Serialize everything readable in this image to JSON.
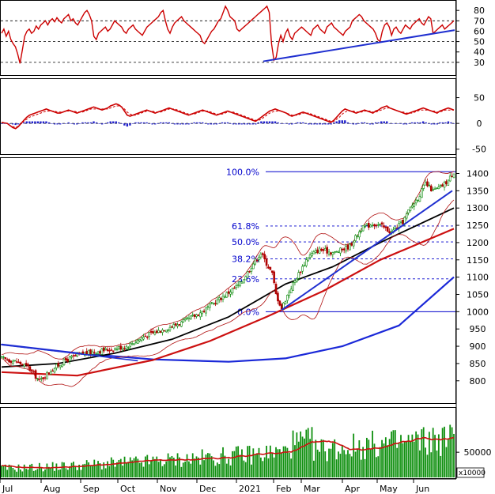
{
  "colors": {
    "rsi": "#cc0000",
    "trend": "#1f2fd0",
    "fib": "#0000cc",
    "bb": "#b01010",
    "ma50": "#000000",
    "ma100": "#cc1010",
    "ma200": "#1a28d8",
    "up": "#0a8a0a",
    "down": "#b00000",
    "volume": "#109010",
    "volume_ma": "#cc1010",
    "macd_hist": "#2020cc",
    "grid": "#000000"
  },
  "chart_data": [
    {
      "type": "line",
      "panel": "rsi",
      "ylim": [
        20,
        87
      ],
      "y_ticks": [
        80,
        70,
        60,
        50,
        40,
        30
      ],
      "ref_levels": [
        70,
        50,
        30
      ],
      "series": [
        {
          "values": [
            58,
            62,
            55,
            60,
            52,
            48,
            45,
            38,
            29,
            42,
            55,
            60,
            62,
            58,
            60,
            65,
            62,
            66,
            68,
            70,
            66,
            70,
            72,
            69,
            73,
            70,
            68,
            72,
            74,
            76,
            70,
            72,
            68,
            66,
            70,
            74,
            78,
            80,
            76,
            70,
            55,
            52,
            58,
            60,
            62,
            64,
            60,
            62,
            66,
            70,
            68,
            66,
            64,
            60,
            58,
            62,
            64,
            66,
            62,
            60,
            58,
            56,
            60,
            64,
            66,
            68,
            70,
            72,
            74,
            78,
            80,
            70,
            62,
            58,
            64,
            68,
            70,
            72,
            74,
            70,
            68,
            66,
            64,
            62,
            60,
            58,
            56,
            50,
            48,
            52,
            56,
            60,
            62,
            66,
            70,
            72,
            78,
            84,
            80,
            74,
            72,
            70,
            62,
            60,
            62,
            64,
            66,
            68,
            70,
            72,
            74,
            76,
            78,
            80,
            82,
            84,
            78,
            48,
            32,
            35,
            48,
            56,
            50,
            58,
            62,
            55,
            52,
            58,
            60,
            62,
            64,
            62,
            60,
            58,
            56,
            62,
            64,
            66,
            62,
            60,
            58,
            64,
            66,
            68,
            64,
            62,
            60,
            58,
            56,
            60,
            62,
            64,
            70,
            72,
            74,
            76,
            74,
            70,
            68,
            66,
            64,
            62,
            58,
            52,
            50,
            60,
            66,
            68,
            64,
            56,
            62,
            64,
            60,
            58,
            62,
            66,
            64,
            62,
            66,
            68,
            70,
            72,
            68,
            66,
            70,
            74,
            72,
            58,
            60,
            62,
            64,
            66,
            62,
            64,
            66,
            68,
            70
          ]
        }
      ]
    },
    {
      "type": "line",
      "panel": "macd",
      "ylim": [
        -55,
        80
      ],
      "y_ticks": [
        50,
        0,
        -50
      ],
      "series": [
        {
          "values": [
            2,
            1,
            0,
            -4,
            -8,
            -10,
            -6,
            0,
            6,
            12,
            16,
            18,
            20,
            22,
            24,
            26,
            28,
            26,
            24,
            22,
            20,
            20,
            22,
            24,
            26,
            24,
            22,
            20,
            22,
            24,
            26,
            28,
            30,
            32,
            30,
            28,
            26,
            28,
            30,
            34,
            36,
            38,
            36,
            32,
            24,
            16,
            14,
            16,
            18,
            20,
            22,
            24,
            26,
            24,
            22,
            20,
            22,
            24,
            26,
            28,
            30,
            28,
            26,
            24,
            22,
            20,
            18,
            16,
            18,
            20,
            22,
            24,
            26,
            24,
            22,
            20,
            18,
            16,
            18,
            20,
            22,
            24,
            22,
            20,
            18,
            16,
            14,
            12,
            10,
            8,
            6,
            4,
            8,
            12,
            16,
            20,
            24,
            26,
            28,
            26,
            24,
            22,
            20,
            16,
            14,
            16,
            18,
            20,
            22,
            20,
            18,
            16,
            14,
            12,
            10,
            8,
            6,
            4,
            2,
            6,
            12,
            18,
            24,
            28,
            26,
            24,
            22,
            20,
            22,
            24,
            26,
            24,
            22,
            20,
            24,
            26,
            30,
            32,
            34,
            30,
            28,
            26,
            24,
            22,
            20,
            18,
            20,
            22,
            24,
            26,
            28,
            30,
            28,
            26,
            24,
            22,
            20,
            24,
            26,
            28,
            30,
            28,
            26
          ]
        },
        {
          "values": [
            2,
            1,
            0,
            -4,
            -6,
            -8,
            -5,
            0,
            4,
            8,
            12,
            14,
            16,
            18,
            20,
            22,
            24,
            24,
            24,
            24,
            22,
            22,
            22,
            24,
            24,
            24,
            24,
            22,
            22,
            22,
            24,
            26,
            28,
            28,
            28,
            28,
            28,
            28,
            28,
            30,
            32,
            34,
            34,
            32,
            28,
            22,
            18,
            16,
            16,
            18,
            20,
            22,
            24,
            24,
            24,
            22,
            22,
            22,
            24,
            26,
            28,
            28,
            28,
            26,
            24,
            22,
            20,
            18,
            18,
            18,
            20,
            22,
            24,
            24,
            24,
            22,
            20,
            18,
            18,
            18,
            20,
            22,
            22,
            22,
            20,
            18,
            16,
            14,
            12,
            10,
            8,
            6,
            6,
            8,
            12,
            16,
            20,
            22,
            24,
            24,
            24,
            22,
            20,
            18,
            16,
            16,
            16,
            18,
            20,
            20,
            20,
            18,
            16,
            14,
            12,
            10,
            8,
            6,
            4,
            4,
            8,
            12,
            18,
            22,
            24,
            24,
            24,
            22,
            22,
            22,
            24,
            24,
            24,
            22,
            22,
            24,
            26,
            28,
            30,
            30,
            28,
            26,
            24,
            22,
            22,
            20,
            20,
            20,
            22,
            24,
            26,
            26,
            26,
            26,
            24,
            24,
            22,
            22,
            24,
            26,
            26,
            26,
            26
          ]
        }
      ],
      "histogram": [
        0,
        0,
        0,
        -1,
        -2,
        -3,
        -2,
        0,
        2,
        4,
        4,
        4,
        4,
        4,
        4,
        4,
        4,
        2,
        0,
        -2,
        -2,
        -2,
        0,
        0,
        2,
        0,
        -2,
        -2,
        0,
        2,
        2,
        2,
        2,
        4,
        2,
        0,
        -2,
        0,
        2,
        4,
        4,
        4,
        2,
        0,
        -4,
        -6,
        -4,
        0,
        2,
        2,
        2,
        2,
        2,
        0,
        -2,
        -2,
        0,
        2,
        2,
        2,
        2,
        0,
        -2,
        -2,
        -2,
        -2,
        -2,
        -2,
        0,
        2,
        2,
        2,
        2,
        0,
        -2,
        -2,
        -2,
        -2,
        0,
        2,
        2,
        2,
        0,
        -2,
        -2,
        -2,
        -2,
        -2,
        -2,
        -2,
        -2,
        -2,
        2,
        4,
        4,
        4,
        4,
        4,
        4,
        2,
        0,
        0,
        0,
        -2,
        -2,
        0,
        2,
        2,
        2,
        0,
        -2,
        -2,
        -2,
        -2,
        -2,
        -2,
        -2,
        -2,
        -2,
        2,
        4,
        6,
        6,
        6,
        2,
        0,
        -2,
        -2,
        0,
        2,
        2,
        0,
        -2,
        -2,
        2,
        2,
        4,
        4,
        4,
        0,
        0,
        0,
        0,
        0,
        -2,
        -2,
        0,
        2,
        2,
        2,
        2,
        4,
        2,
        0,
        -2,
        -2,
        -2,
        2,
        2,
        2,
        4,
        2,
        0
      ]
    },
    {
      "type": "candlestick",
      "panel": "price",
      "ylim": [
        740,
        1440
      ],
      "y_ticks": [
        1400,
        1350,
        1300,
        1250,
        1200,
        1150,
        1100,
        1050,
        1000,
        950,
        900,
        850,
        800
      ],
      "x_tick_labels": [
        "Jul",
        "Aug",
        "Sep",
        "Oct",
        "Nov",
        "Dec",
        "2021",
        "Feb",
        "Mar",
        "Apr",
        "May",
        "Jun"
      ],
      "fibonacci": [
        {
          "label": "100.0%",
          "value": 1405
        },
        {
          "label": "61.8%",
          "value": 1248
        },
        {
          "label": "50.0%",
          "value": 1202
        },
        {
          "label": "38.2%",
          "value": 1153
        },
        {
          "label": "23.6%",
          "value": 1095
        },
        {
          "label": "0.0%",
          "value": 1000
        }
      ],
      "trendline_start": 1005,
      "trendline_end": 1350
    },
    {
      "type": "bar",
      "panel": "volume",
      "y_ticks": [
        50000
      ],
      "unit_label": "x10000",
      "ylim": [
        0,
        135000
      ]
    }
  ]
}
